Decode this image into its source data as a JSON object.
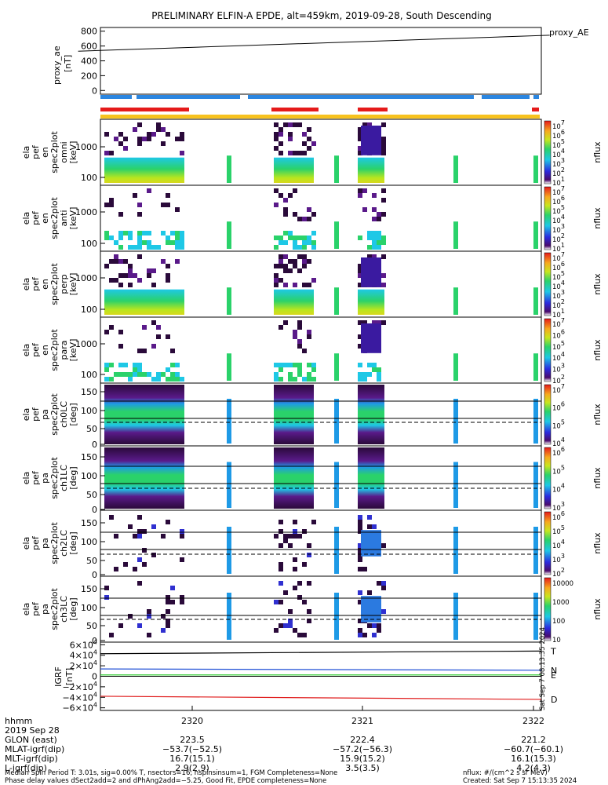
{
  "title": "PRELIMINARY ELFIN-A EPDE, alt=459km, 2019-09-28, South Descending",
  "colors": {
    "blue_bar": "#2b86e0",
    "red_bar": "#e51a1a",
    "yellow_bar": "#f7c21e",
    "dark_purple": "#2a0a3a",
    "ae_line": "#000000",
    "igrf_n": "#1f4fd6",
    "igrf_e": "#18c51a",
    "igrf_d": "#e01b1b"
  },
  "chart_data": [
    {
      "type": "line",
      "panel": "proxy_ae",
      "ylabel": "proxy_ae\n[nT]",
      "ylim": [
        -50,
        850
      ],
      "yticks": [
        "800",
        "600",
        "400",
        "200",
        "0"
      ],
      "series": [
        {
          "name": "proxy_AE",
          "x": [
            2319.33,
            2322.1
          ],
          "values": [
            530,
            745
          ]
        }
      ]
    },
    {
      "type": "heatmap",
      "panel": "pef_en_spec2plot_omni",
      "ylabel": [
        "ela",
        "pef",
        "en",
        "spec2plot",
        "omni",
        "[keV]"
      ],
      "yticks": [
        "1000",
        "100"
      ],
      "colorbar": {
        "label": "nflux",
        "ticks": [
          "10^7",
          "10^6",
          "10^5",
          "10^4",
          "10^3",
          "10^2",
          "10^1"
        ]
      }
    },
    {
      "type": "heatmap",
      "panel": "pef_en_spec2plot_anti",
      "ylabel": [
        "ela",
        "pef",
        "en",
        "spec2plot",
        "anti",
        "[keV]"
      ],
      "yticks": [
        "1000",
        "100"
      ],
      "colorbar": {
        "label": "nflux",
        "ticks": [
          "10^7",
          "10^6",
          "10^5",
          "10^4",
          "10^3",
          "10^2",
          "10^1"
        ]
      }
    },
    {
      "type": "heatmap",
      "panel": "pef_en_spec2plot_perp",
      "ylabel": [
        "ela",
        "pef",
        "en",
        "spec2plot",
        "perp",
        "[keV]"
      ],
      "yticks": [
        "1000",
        "100"
      ],
      "colorbar": {
        "label": "nflux",
        "ticks": [
          "10^7",
          "10^6",
          "10^5",
          "10^4",
          "10^3",
          "10^2",
          "10^1"
        ]
      }
    },
    {
      "type": "heatmap",
      "panel": "pef_en_spec2plot_para",
      "ylabel": [
        "ela",
        "pef",
        "en",
        "spec2plot",
        "para",
        "[keV]"
      ],
      "yticks": [
        "1000",
        "100"
      ],
      "colorbar": {
        "label": "nflux",
        "ticks": [
          "10^7",
          "10^6",
          "10^5",
          "10^4",
          "10^3",
          "10^2"
        ]
      }
    },
    {
      "type": "heatmap",
      "panel": "pef_pa_spec2plot_ch0LC",
      "ylabel": [
        "ela",
        "pef",
        "pa",
        "spec2plot",
        "ch0LC",
        "[deg]"
      ],
      "yticks": [
        "150",
        "100",
        "50",
        "0"
      ],
      "colorbar": {
        "label": "nflux",
        "ticks": [
          "10^7",
          "10^6",
          "10^5",
          "10^4"
        ]
      }
    },
    {
      "type": "heatmap",
      "panel": "pef_pa_spec2plot_ch1LC",
      "ylabel": [
        "ela",
        "pef",
        "pa",
        "spec2plot",
        "ch1LC",
        "[deg]"
      ],
      "yticks": [
        "150",
        "100",
        "50",
        "0"
      ],
      "colorbar": {
        "label": "nflux",
        "ticks": [
          "10^6",
          "10^5",
          "10^4",
          "10^3"
        ]
      }
    },
    {
      "type": "heatmap",
      "panel": "pef_pa_spec2plot_ch2LC",
      "ylabel": [
        "ela",
        "pef",
        "pa",
        "spec2plot",
        "ch2LC",
        "[deg]"
      ],
      "yticks": [
        "150",
        "100",
        "50",
        "0"
      ],
      "colorbar": {
        "label": "nflux",
        "ticks": [
          "10^6",
          "10^5",
          "10^4",
          "10^3",
          "10^2"
        ]
      }
    },
    {
      "type": "heatmap",
      "panel": "pef_pa_spec2plot_ch3LC",
      "ylabel": [
        "ela",
        "pef",
        "pa",
        "spec2plot",
        "ch3LC",
        "[deg]"
      ],
      "yticks": [
        "150",
        "100",
        "50",
        "0"
      ],
      "colorbar": {
        "label": "nflux",
        "ticks": [
          "10000",
          "1000",
          "100",
          "10"
        ]
      }
    },
    {
      "type": "line",
      "panel": "igrf",
      "ylabel": "IGRF\n[nT]",
      "ylim": [
        -65000,
        65000
      ],
      "yticks": [
        "6×10^4",
        "4×10^4",
        "2×10^4",
        "0",
        "−2×10^4",
        "−4×10^4",
        "−6×10^4"
      ],
      "series": [
        {
          "name": "T",
          "values": [
            43000,
            48000
          ]
        },
        {
          "name": "N",
          "values": [
            14000,
            11500
          ]
        },
        {
          "name": "E",
          "values": [
            2500,
            2500
          ]
        },
        {
          "name": "D",
          "values": [
            -38000,
            -44000
          ]
        }
      ]
    }
  ],
  "proxy_ae_label": "proxy_AE",
  "x_axis": {
    "ticks": [
      "2320",
      "2321",
      "2322"
    ],
    "rows": [
      {
        "label": "hhmm",
        "values": [
          "",
          "",
          ""
        ]
      },
      {
        "label": "2019 Sep 28",
        "values": [
          "",
          "",
          ""
        ]
      },
      {
        "label": "GLON (east)",
        "values": [
          "223.5",
          "222.4",
          "221.2"
        ]
      },
      {
        "label": "MLAT-igrf(dip)",
        "values": [
          "−53.7(−52.5)",
          "−57.2(−56.3)",
          "−60.7(−60.1)"
        ]
      },
      {
        "label": "MLT-igrf(dip)",
        "values": [
          "16.7(15.1)",
          "15.9(15.2)",
          "16.1(15.3)"
        ]
      },
      {
        "label": "L-igrf(dip)",
        "values": [
          "2.9(2.9)",
          "3.5(3.5)",
          "4.2(4.3)"
        ]
      }
    ]
  },
  "footer": {
    "line1": "Median Spin Period T: 3.01s, sig=0.00% T, nsectors=16, nspinsinsum=1, FGM Completeness=None",
    "line2": "Phase delay values dSect2add=2 and dPhAng2add=−5.25, Good Fit, EPDE completeness=None",
    "units": "nflux: #/(cm^2 s sr MeV)",
    "created": "Created: Sat Sep  7 15:13:35 2024"
  },
  "side_stamp": "Sat Sep  7 08:13:35 2024"
}
